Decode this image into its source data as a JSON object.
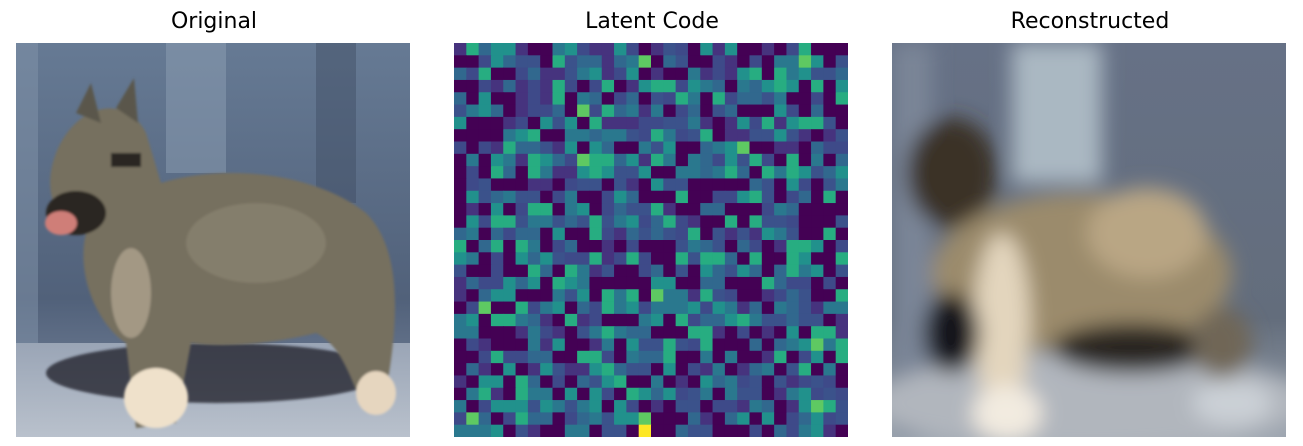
{
  "panels": {
    "original": {
      "title": "Original"
    },
    "latent": {
      "title": "Latent Code"
    },
    "reconstructed": {
      "title": "Reconstructed"
    }
  },
  "latent_grid": {
    "rows": 32,
    "cols": 32,
    "colormap": "viridis",
    "colors": {
      "low": "#440154",
      "mid_low": "#3b528b",
      "mid": "#21918c",
      "mid_high": "#5ec962",
      "high": "#fde725"
    }
  },
  "image_colors": {
    "sky": "#5c6d86",
    "ground": "#a9b2c0",
    "dog_fur": "#7c7666",
    "dog_dark": "#2e2a25",
    "dog_light": "#e9d8c3"
  }
}
